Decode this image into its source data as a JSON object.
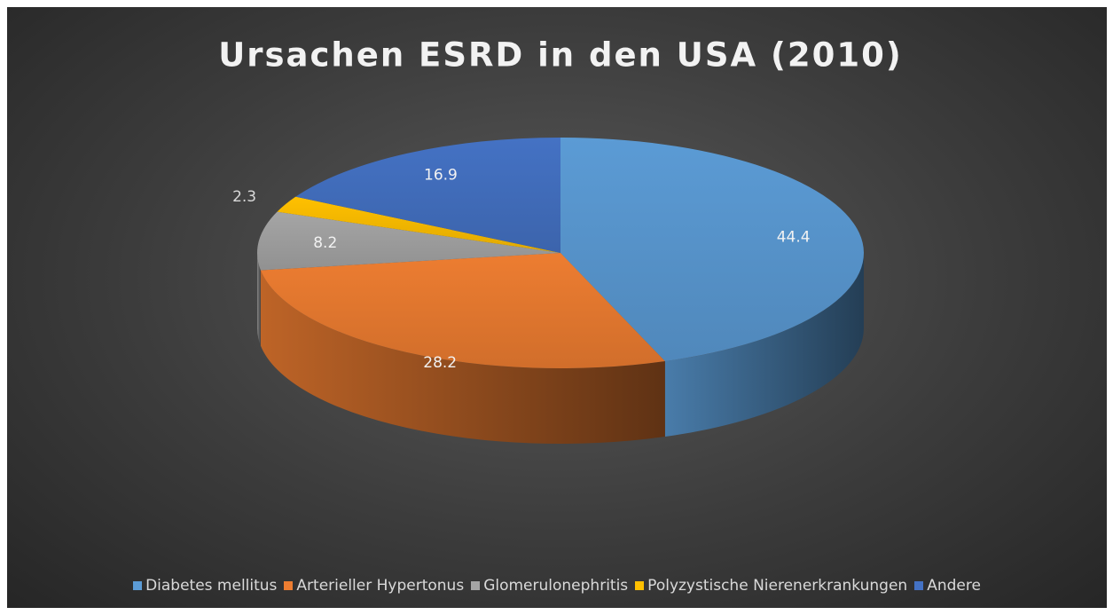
{
  "chart_data": {
    "type": "pie3d",
    "title": "Ursachen ESRD in den USA (2010)",
    "categories": [
      "Diabetes mellitus",
      "Arterieller Hypertonus",
      "Glomerulonephritis",
      "Polyzystische Nierenerkrankungen",
      "Andere"
    ],
    "values": [
      44.4,
      28.2,
      8.2,
      2.3,
      16.9
    ],
    "colors": [
      "#5b9bd5",
      "#ed7d31",
      "#a5a5a5",
      "#ffc000",
      "#4472c4"
    ],
    "legend": "bottom"
  }
}
